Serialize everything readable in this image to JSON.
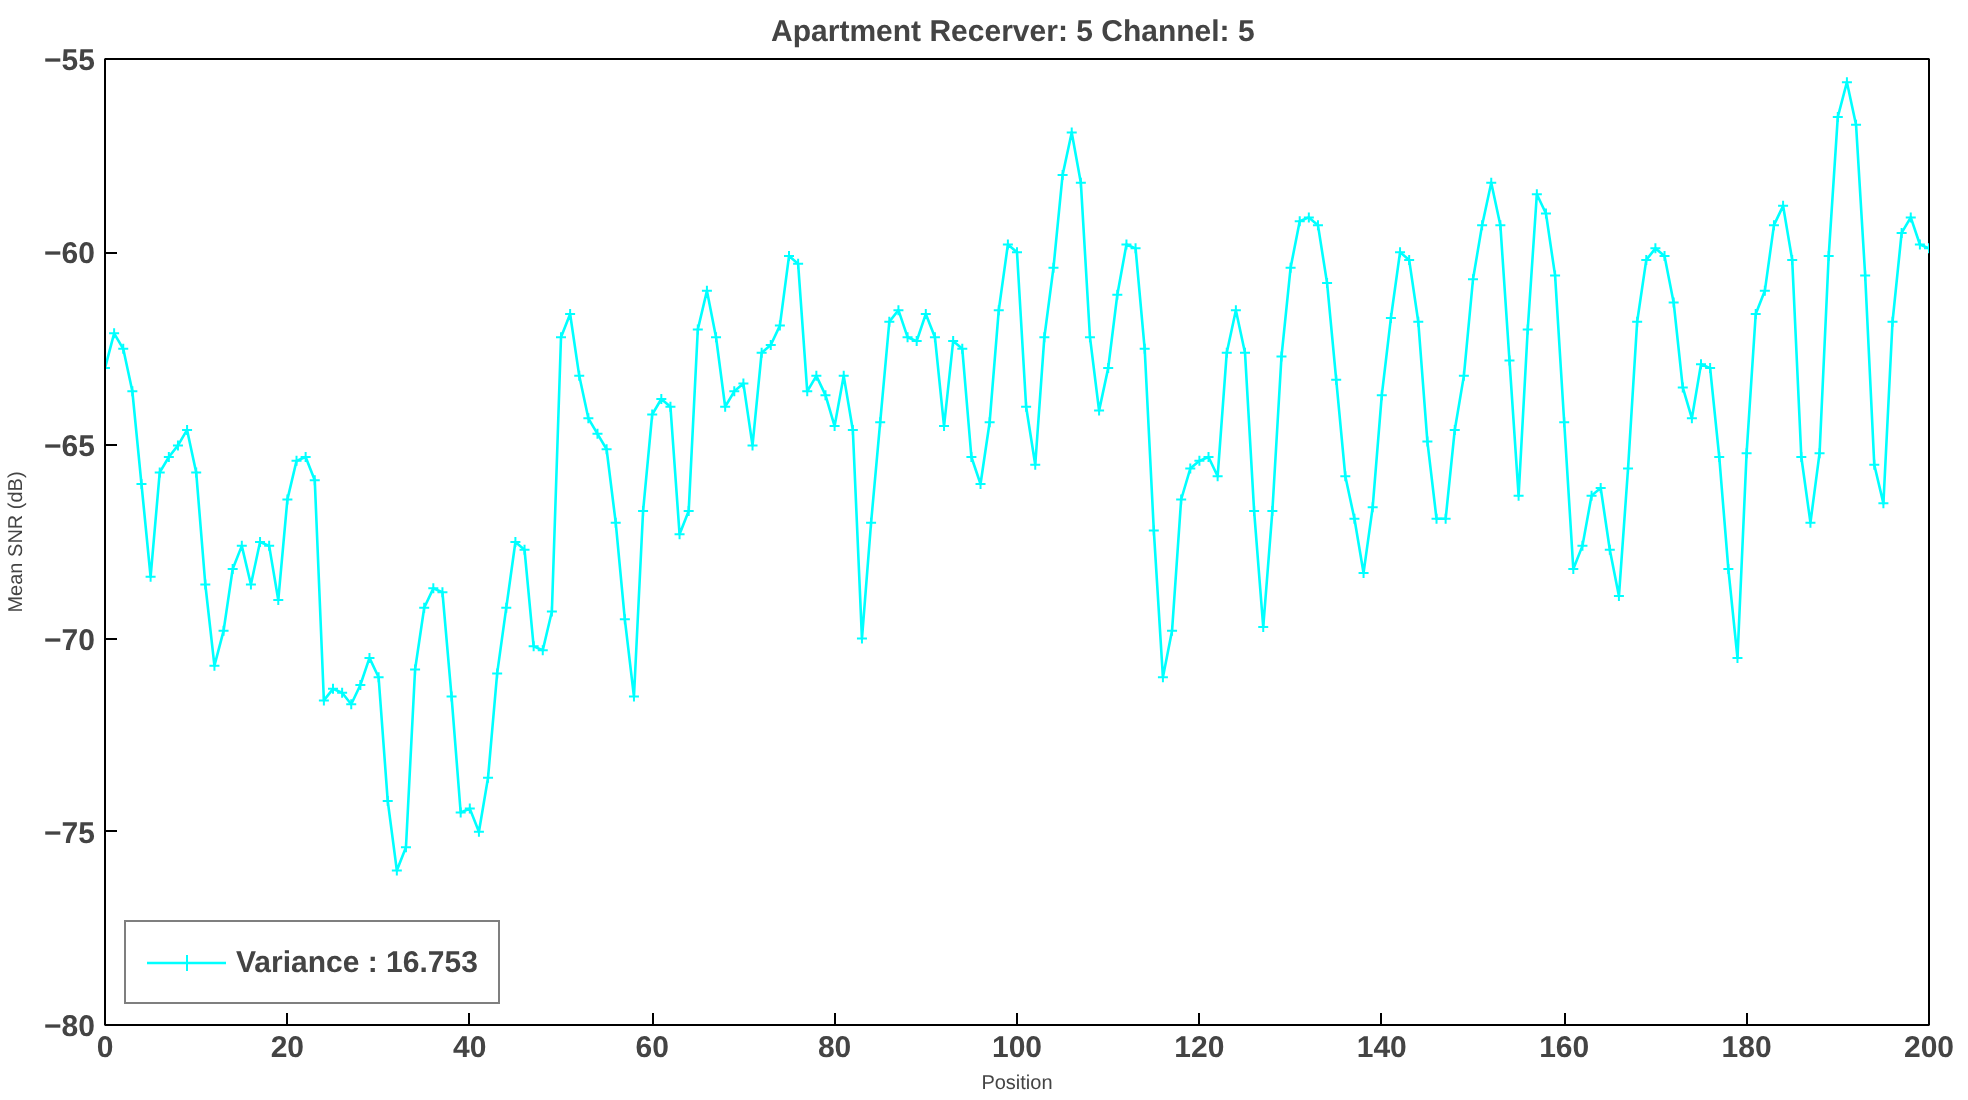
{
  "chart_data": {
    "type": "line",
    "title": "Apartment  Recerver: 5 Channel: 5",
    "xlabel": "Position",
    "ylabel": "Mean SNR (dB)",
    "x": [
      0,
      1,
      2,
      3,
      4,
      5,
      6,
      7,
      8,
      9,
      10,
      11,
      12,
      13,
      14,
      15,
      16,
      17,
      18,
      19,
      20,
      21,
      22,
      23,
      24,
      25,
      26,
      27,
      28,
      29,
      30,
      31,
      32,
      33,
      34,
      35,
      36,
      37,
      38,
      39,
      40,
      41,
      42,
      43,
      44,
      45,
      46,
      47,
      48,
      49,
      50,
      51,
      52,
      53,
      54,
      55,
      56,
      57,
      58,
      59,
      60,
      61,
      62,
      63,
      64,
      65,
      66,
      67,
      68,
      69,
      70,
      71,
      72,
      73,
      74,
      75,
      76,
      77,
      78,
      79,
      80,
      81,
      82,
      83,
      84,
      85,
      86,
      87,
      88,
      89,
      90,
      91,
      92,
      93,
      94,
      95,
      96,
      97,
      98,
      99,
      100,
      101,
      102,
      103,
      104,
      105,
      106,
      107,
      108,
      109,
      110,
      111,
      112,
      113,
      114,
      115,
      116,
      117,
      118,
      119,
      120,
      121,
      122,
      123,
      124,
      125,
      126,
      127,
      128,
      129,
      130,
      131,
      132,
      133,
      134,
      135,
      136,
      137,
      138,
      139,
      140,
      141,
      142,
      143,
      144,
      145,
      146,
      147,
      148,
      149,
      150,
      151,
      152,
      153,
      154,
      155,
      156,
      157,
      158,
      159,
      160,
      161,
      162,
      163,
      164,
      165,
      166,
      167,
      168,
      169,
      170,
      171,
      172,
      173,
      174,
      175,
      176,
      177,
      178,
      179,
      180,
      181,
      182,
      183,
      184,
      185,
      186,
      187,
      188,
      189,
      190,
      191,
      192,
      193,
      194,
      195,
      196,
      197,
      198,
      199,
      200
    ],
    "series": [
      {
        "name": "Variance : 16.753",
        "color": "#00ffff",
        "values": [
          -63,
          -62.1,
          -62.5,
          -63.6,
          -66,
          -68.4,
          -65.7,
          -65.3,
          -65,
          -64.6,
          -65.7,
          -68.6,
          -70.7,
          -69.8,
          -68.2,
          -67.6,
          -68.6,
          -67.5,
          -67.6,
          -69,
          -66.4,
          -65.4,
          -65.3,
          -65.9,
          -71.6,
          -71.3,
          -71.4,
          -71.7,
          -71.2,
          -70.5,
          -71,
          -74.2,
          -76,
          -75.4,
          -70.8,
          -69.2,
          -68.7,
          -68.8,
          -71.5,
          -74.5,
          -74.4,
          -75,
          -73.6,
          -70.9,
          -69.2,
          -67.5,
          -67.7,
          -70.2,
          -70.3,
          -69.3,
          -62.2,
          -61.6,
          -63.2,
          -64.3,
          -64.7,
          -65.1,
          -67,
          -69.5,
          -71.5,
          -66.7,
          -64.2,
          -63.8,
          -64,
          -67.3,
          -66.7,
          -62,
          -61,
          -62.2,
          -64,
          -63.6,
          -63.4,
          -65,
          -62.6,
          -62.4,
          -61.9,
          -60.1,
          -60.3,
          -63.6,
          -63.2,
          -63.7,
          -64.5,
          -63.2,
          -64.6,
          -70,
          -67,
          -64.4,
          -61.8,
          -61.5,
          -62.2,
          -62.3,
          -61.6,
          -62.2,
          -64.5,
          -62.3,
          -62.5,
          -65.3,
          -66,
          -64.4,
          -61.5,
          -59.8,
          -60,
          -64,
          -65.5,
          -62.2,
          -60.4,
          -58,
          -56.9,
          -58.2,
          -62.2,
          -64.1,
          -63,
          -61.1,
          -59.8,
          -59.9,
          -62.5,
          -67.2,
          -71,
          -69.8,
          -66.4,
          -65.6,
          -65.4,
          -65.3,
          -65.8,
          -62.6,
          -61.5,
          -62.6,
          -66.7,
          -69.7,
          -66.7,
          -62.7,
          -60.4,
          -59.2,
          -59.1,
          -59.3,
          -60.8,
          -63.3,
          -65.8,
          -66.9,
          -68.3,
          -66.6,
          -63.7,
          -61.7,
          -60,
          -60.2,
          -61.8,
          -64.9,
          -66.9,
          -66.9,
          -64.6,
          -63.2,
          -60.7,
          -59.3,
          -58.2,
          -59.3,
          -62.8,
          -66.3,
          -62,
          -58.5,
          -59,
          -60.6,
          -64.4,
          -68.2,
          -67.6,
          -66.3,
          -66.1,
          -67.7,
          -68.9,
          -65.6,
          -61.8,
          -60.2,
          -59.9,
          -60.1,
          -61.3,
          -63.5,
          -64.3,
          -62.9,
          -63,
          -65.3,
          -68.2,
          -70.5,
          -65.2,
          -61.6,
          -61,
          -59.3,
          -58.8,
          -60.2,
          -65.3,
          -67,
          -65.2,
          -60.1,
          -56.5,
          -55.6,
          -56.7,
          -60.6,
          -65.5,
          -66.5,
          -61.8,
          -59.5,
          -59.1,
          -59.8,
          -59.9
        ]
      }
    ],
    "xlim": [
      0,
      200
    ],
    "xticks": [
      0,
      20,
      40,
      60,
      80,
      100,
      120,
      140,
      160,
      180,
      200
    ],
    "ylim": [
      -80,
      -55
    ],
    "yticks": [
      -80,
      -75,
      -70,
      -65,
      -60,
      -55
    ],
    "marker": "cross",
    "line_style": "solid",
    "legend": "bottom left",
    "grid": false
  }
}
